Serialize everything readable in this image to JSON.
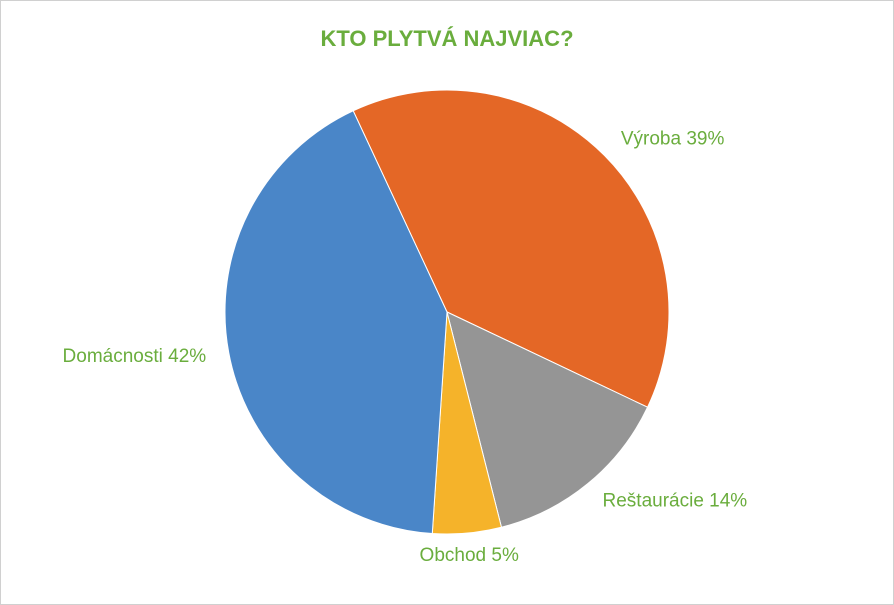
{
  "chart_data": {
    "type": "pie",
    "title": "KTO PLYTVÁ NAJVIAC?",
    "categories": [
      "Výroba",
      "Reštaurácie",
      "Obchod",
      "Domácnosti"
    ],
    "values": [
      39,
      14,
      5,
      42
    ],
    "value_labels": [
      "39%",
      "14%",
      "5%",
      "42%"
    ],
    "colors": [
      "#e46726",
      "#959595",
      "#f5b32a",
      "#4a86c8"
    ],
    "label_color": "#6aad3d"
  }
}
